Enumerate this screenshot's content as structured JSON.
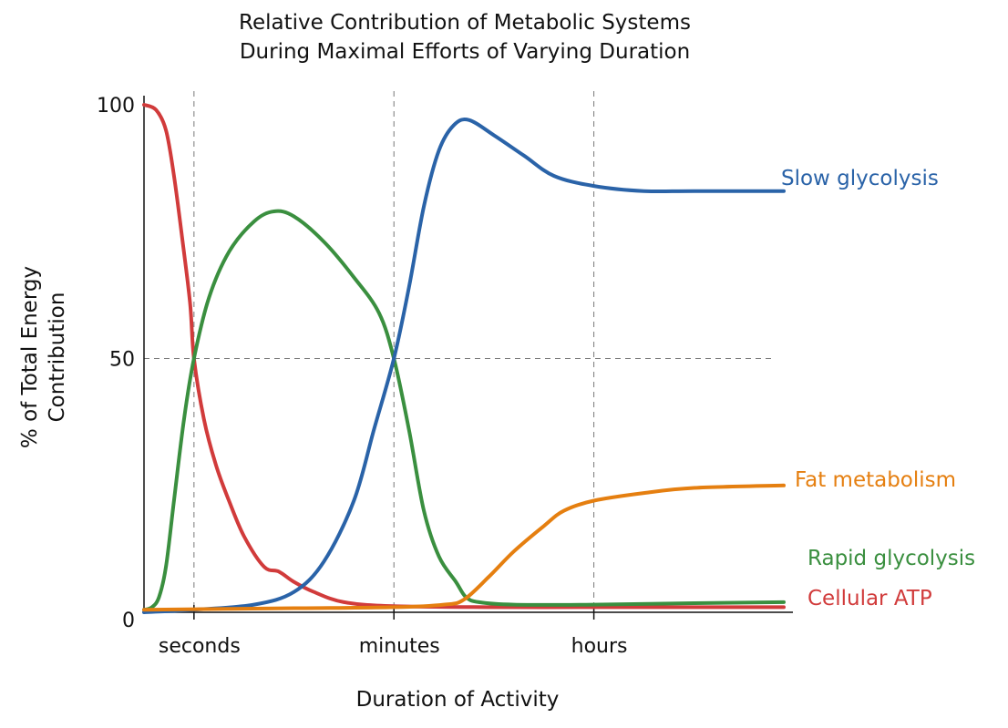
{
  "chart_data": {
    "type": "line",
    "title": [
      "Relative Contribution of Metabolic Systems",
      "During Maximal Efforts of Varying Duration"
    ],
    "xlabel": "Duration of Activity",
    "ylabel": [
      "% of Total Energy",
      "Contribution"
    ],
    "x_ticks": [
      {
        "label": "seconds",
        "value": 1
      },
      {
        "label": "minutes",
        "value": 3
      },
      {
        "label": "hours",
        "value": 5
      }
    ],
    "y_ticks": [
      0,
      50,
      100
    ],
    "xlim": [
      0.5,
      6.9
    ],
    "ylim": [
      0,
      100
    ],
    "grid": {
      "x_dashed": true,
      "y_dashed_at": [
        50
      ]
    },
    "series": [
      {
        "name": "Cellular ATP",
        "color": "#d13b3b",
        "points": [
          [
            0.5,
            100
          ],
          [
            0.62,
            99
          ],
          [
            0.72,
            95
          ],
          [
            0.8,
            86
          ],
          [
            0.88,
            74
          ],
          [
            0.96,
            61
          ],
          [
            1.0,
            50
          ],
          [
            1.1,
            38
          ],
          [
            1.22,
            29
          ],
          [
            1.35,
            22
          ],
          [
            1.5,
            15
          ],
          [
            1.7,
            9
          ],
          [
            1.85,
            8
          ],
          [
            2.0,
            6
          ],
          [
            2.2,
            4
          ],
          [
            2.5,
            2
          ],
          [
            3.0,
            1.2
          ],
          [
            4.0,
            1.0
          ],
          [
            5.0,
            1.0
          ],
          [
            6.0,
            1.0
          ],
          [
            6.9,
            1.0
          ]
        ]
      },
      {
        "name": "Rapid glycolysis",
        "color": "#3a8f3f",
        "points": [
          [
            0.5,
            0.5
          ],
          [
            0.58,
            1
          ],
          [
            0.65,
            3
          ],
          [
            0.72,
            9
          ],
          [
            0.8,
            22
          ],
          [
            0.9,
            38
          ],
          [
            1.0,
            50
          ],
          [
            1.15,
            62
          ],
          [
            1.35,
            71
          ],
          [
            1.6,
            77
          ],
          [
            1.8,
            79
          ],
          [
            2.0,
            78
          ],
          [
            2.3,
            73
          ],
          [
            2.6,
            66
          ],
          [
            2.85,
            59
          ],
          [
            3.0,
            50
          ],
          [
            3.15,
            36
          ],
          [
            3.3,
            20
          ],
          [
            3.45,
            11
          ],
          [
            3.62,
            6
          ],
          [
            3.72,
            3
          ],
          [
            3.85,
            2
          ],
          [
            4.2,
            1.5
          ],
          [
            5.0,
            1.5
          ],
          [
            6.0,
            1.8
          ],
          [
            6.9,
            2.0
          ]
        ]
      },
      {
        "name": "Slow glycolysis",
        "color": "#2a63a8",
        "points": [
          [
            0.5,
            0
          ],
          [
            1.0,
            0.5
          ],
          [
            1.6,
            1.5
          ],
          [
            2.0,
            4
          ],
          [
            2.3,
            10
          ],
          [
            2.6,
            22
          ],
          [
            2.8,
            36
          ],
          [
            3.0,
            50
          ],
          [
            3.15,
            64
          ],
          [
            3.3,
            80
          ],
          [
            3.45,
            91
          ],
          [
            3.6,
            96
          ],
          [
            3.75,
            97
          ],
          [
            4.0,
            94
          ],
          [
            4.3,
            90
          ],
          [
            4.6,
            86
          ],
          [
            5.0,
            84
          ],
          [
            5.5,
            83
          ],
          [
            6.0,
            83
          ],
          [
            6.9,
            83
          ]
        ]
      },
      {
        "name": "Fat metabolism",
        "color": "#e57f10",
        "points": [
          [
            0.5,
            0.5
          ],
          [
            2.0,
            0.8
          ],
          [
            3.0,
            1.0
          ],
          [
            3.5,
            1.5
          ],
          [
            3.7,
            2.5
          ],
          [
            3.95,
            7
          ],
          [
            4.2,
            12
          ],
          [
            4.5,
            17
          ],
          [
            4.7,
            20
          ],
          [
            5.0,
            22
          ],
          [
            5.5,
            23.5
          ],
          [
            6.0,
            24.5
          ],
          [
            6.9,
            25
          ]
        ]
      }
    ]
  }
}
